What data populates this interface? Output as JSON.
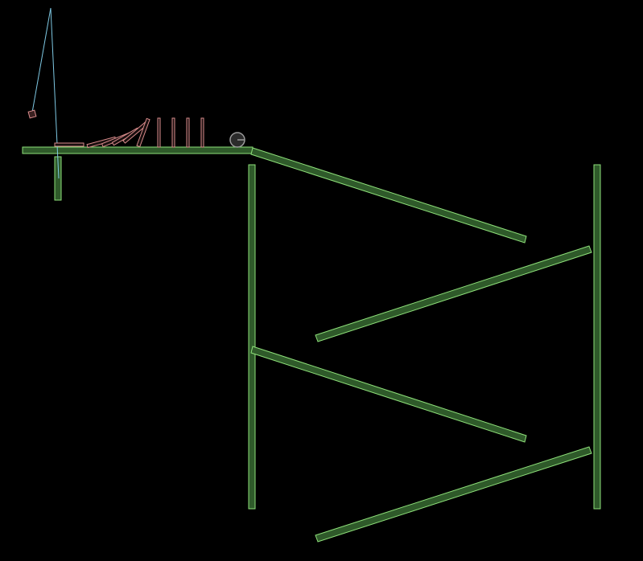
{
  "scene": {
    "background": "#000000",
    "colors": {
      "static_fill": "#2f5a2a",
      "static_stroke": "#8ee07a",
      "domino_fill": "#1a0f0f",
      "domino_stroke": "#d98c8c",
      "rope": "#7ec8e3",
      "ball_fill": "#2b2b2b",
      "ball_stroke": "#9a9a9a",
      "bob_fill": "#3a2020",
      "bob_stroke": "#d98c8c"
    },
    "objects": {
      "top_shelf": "static-beam",
      "shelf_support_post": "static-beam",
      "left_wall": "static-beam",
      "right_wall": "static-beam",
      "ramps": 5,
      "dominoes_fallen": 6,
      "dominoes_standing": 4,
      "ball": "circle",
      "pendulum": "rope-with-block"
    }
  }
}
